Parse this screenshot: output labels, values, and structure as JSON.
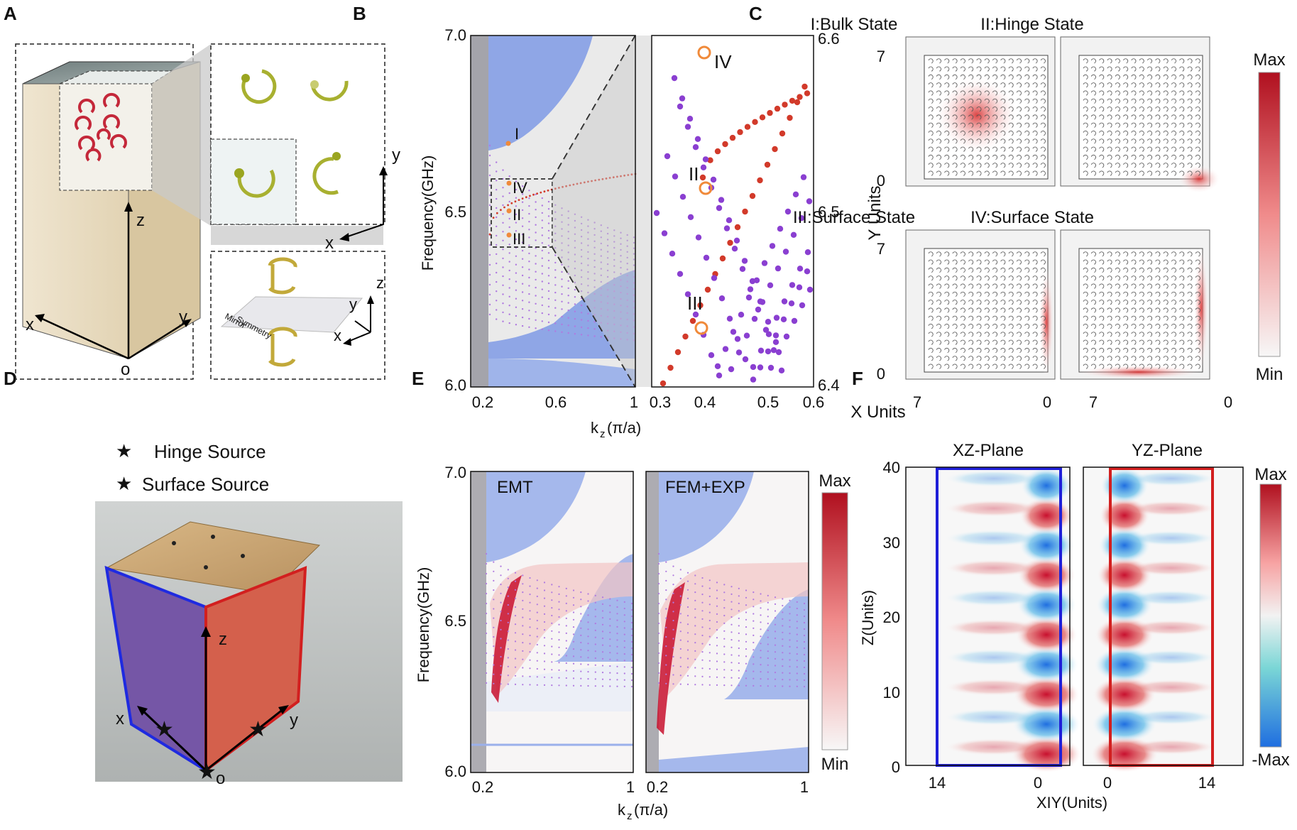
{
  "panel_labels": [
    "A",
    "B",
    "C",
    "D",
    "E",
    "F"
  ],
  "panelA": {
    "axes": {
      "z": "z",
      "x": "x",
      "y": "y",
      "origin": "o"
    },
    "unit_cell_axes": {
      "x": "x",
      "y": "y"
    },
    "side_axes": {
      "x": "x",
      "y": "y",
      "z": "z"
    },
    "mirror_label_1": "Mirror",
    "mirror_label_2": "Symmetry"
  },
  "panelB": {
    "ylabel": "Frequency(GHz)",
    "xlabel": "k",
    "xlabel_sub": "z",
    "xlabel_unit": "(π/a)",
    "left_yticks": [
      "7.0",
      "6.5",
      "6.0"
    ],
    "left_xticks": [
      "0.2",
      "0.6",
      "1"
    ],
    "right_yticks": [
      "6.6",
      "6.5",
      "6.4"
    ],
    "right_xticks": [
      "0.3",
      "0.4",
      "0.5",
      "0.6"
    ],
    "mode_labels": [
      "I",
      "II",
      "III",
      "IV"
    ]
  },
  "panelC": {
    "titles": [
      "I:Bulk State",
      "II:Hinge State",
      "III:Surface State",
      "IV:Surface State"
    ],
    "ylabel": "Y Units",
    "xlabel": "X Units",
    "yticks_top": [
      "7",
      "0"
    ],
    "yticks_bottom": [
      "7",
      "0"
    ],
    "xticks": [
      "7",
      "0",
      "7",
      "0"
    ],
    "colorbar": {
      "max": "Max",
      "min": "Min"
    }
  },
  "panelD": {
    "legend": [
      {
        "label": "Hinge Source",
        "color": "#cc3322"
      },
      {
        "label": "Surface Source",
        "color": "#8a3fd1"
      }
    ],
    "axes": {
      "z": "z",
      "x": "x",
      "y": "y",
      "origin": "o"
    }
  },
  "panelE": {
    "left_title": "EMT",
    "right_title": "FEM+EXP",
    "ylabel": "Frequency(GHz)",
    "xlabel": "k",
    "xlabel_sub": "z",
    "xlabel_unit": "(π/a)",
    "yticks": [
      "7.0",
      "6.5",
      "6.0"
    ],
    "xticks_left": [
      "0.2",
      "1"
    ],
    "xticks_right": [
      "0.2",
      "1"
    ],
    "colorbar": {
      "max": "Max",
      "min": "Min"
    }
  },
  "panelF": {
    "left_title": "XZ-Plane",
    "right_title": "YZ-Plane",
    "ylabel": "Z(Units)",
    "xlabel": "XIY(Units)",
    "yticks": [
      "40",
      "30",
      "20",
      "10",
      "0"
    ],
    "xticks_left": [
      "14",
      "0"
    ],
    "xticks_right": [
      "0",
      "14"
    ],
    "colorbar": {
      "max": "Max",
      "min": "-Max"
    }
  },
  "colors": {
    "band_blue": "#8fa6e6",
    "hinge_red": "#d23a2a",
    "surface_purple": "#8a3fd1",
    "highlight_orange": "#f08a3a",
    "field_red": "#c8102e",
    "field_blue": "#1f7ae0"
  }
}
